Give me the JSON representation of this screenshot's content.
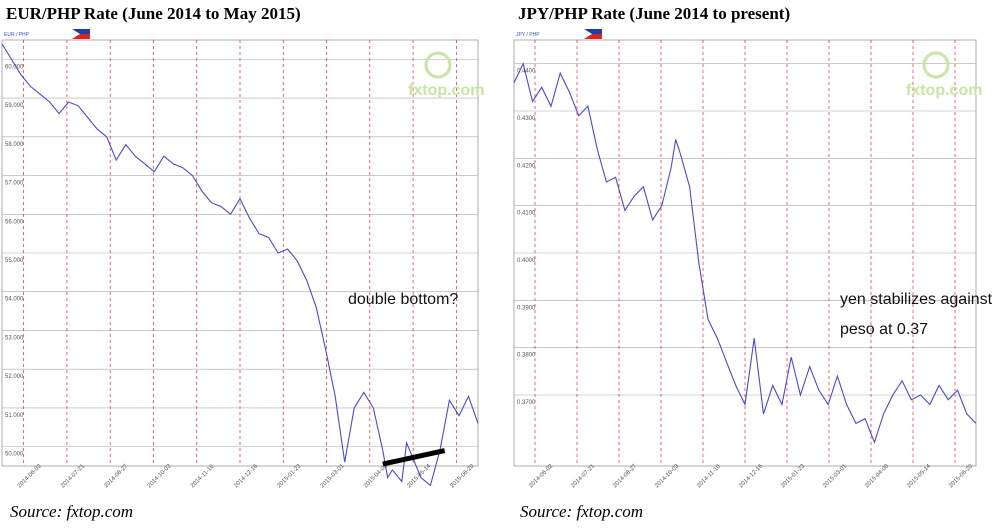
{
  "chart_data": [
    {
      "type": "line",
      "title": "EUR/PHP Rate (June 2014 to May 2015)",
      "source": "Source: fxtop.com",
      "annotation": "double bottom?",
      "header": "EUR / PHP",
      "watermark": "fxtop.com",
      "ylim": [
        49.5,
        60.5
      ],
      "yticks": [
        60,
        59,
        58,
        57,
        56,
        55,
        54,
        53,
        52,
        51,
        50
      ],
      "xticks": [
        "2014-06-02",
        "2014-07-21",
        "2014-08-27",
        "2014-10-03",
        "2014-11-10",
        "2014-12-16",
        "2015-01-23",
        "2015-03-01",
        "2015-04-08",
        "2015-05-14",
        "2015-06-20"
      ],
      "color": "#4a4ad6",
      "trendline": [
        [
          0.8,
          49.55
        ],
        [
          0.93,
          49.9
        ]
      ],
      "points": [
        [
          0,
          60.4
        ],
        [
          0.02,
          60.0
        ],
        [
          0.04,
          59.6
        ],
        [
          0.06,
          59.3
        ],
        [
          0.08,
          59.1
        ],
        [
          0.1,
          58.9
        ],
        [
          0.12,
          58.6
        ],
        [
          0.14,
          58.9
        ],
        [
          0.16,
          58.8
        ],
        [
          0.18,
          58.5
        ],
        [
          0.2,
          58.2
        ],
        [
          0.22,
          58.0
        ],
        [
          0.24,
          57.4
        ],
        [
          0.26,
          57.8
        ],
        [
          0.28,
          57.5
        ],
        [
          0.3,
          57.3
        ],
        [
          0.32,
          57.1
        ],
        [
          0.34,
          57.5
        ],
        [
          0.36,
          57.3
        ],
        [
          0.38,
          57.2
        ],
        [
          0.4,
          57.0
        ],
        [
          0.42,
          56.6
        ],
        [
          0.44,
          56.3
        ],
        [
          0.46,
          56.2
        ],
        [
          0.48,
          56.0
        ],
        [
          0.5,
          56.4
        ],
        [
          0.52,
          55.9
        ],
        [
          0.54,
          55.5
        ],
        [
          0.56,
          55.4
        ],
        [
          0.58,
          55.0
        ],
        [
          0.6,
          55.1
        ],
        [
          0.62,
          54.8
        ],
        [
          0.64,
          54.3
        ],
        [
          0.66,
          53.6
        ],
        [
          0.68,
          52.5
        ],
        [
          0.7,
          51.3
        ],
        [
          0.72,
          49.6
        ],
        [
          0.74,
          51.0
        ],
        [
          0.76,
          51.4
        ],
        [
          0.78,
          51.0
        ],
        [
          0.8,
          49.9
        ],
        [
          0.81,
          49.2
        ],
        [
          0.82,
          49.4
        ],
        [
          0.84,
          49.1
        ],
        [
          0.85,
          50.1
        ],
        [
          0.86,
          49.8
        ],
        [
          0.88,
          49.2
        ],
        [
          0.9,
          49.0
        ],
        [
          0.92,
          49.9
        ],
        [
          0.94,
          51.2
        ],
        [
          0.96,
          50.8
        ],
        [
          0.98,
          51.3
        ],
        [
          1.0,
          50.6
        ]
      ]
    },
    {
      "type": "line",
      "title": "JPY/PHP Rate (June 2014 to present)",
      "source": "Source: fxtop.com",
      "annotation": [
        "yen stabilizes against",
        "peso at 0.37"
      ],
      "header": "JPY / PHP",
      "watermark": "fxtop.com",
      "ylim": [
        0.355,
        0.445
      ],
      "yticks": [
        0.44,
        0.43,
        0.42,
        0.41,
        0.4,
        0.39,
        0.38,
        0.37
      ],
      "xticks": [
        "2014-06-02",
        "2014-07-21",
        "2014-08-27",
        "2014-10-03",
        "2014-11-10",
        "2014-12-16",
        "2015-01-23",
        "2015-03-01",
        "2015-04-08",
        "2015-05-14",
        "2015-06-20"
      ],
      "color": "#4a4ad6",
      "points": [
        [
          0,
          0.436
        ],
        [
          0.02,
          0.44
        ],
        [
          0.04,
          0.432
        ],
        [
          0.06,
          0.435
        ],
        [
          0.08,
          0.431
        ],
        [
          0.1,
          0.438
        ],
        [
          0.12,
          0.434
        ],
        [
          0.14,
          0.429
        ],
        [
          0.16,
          0.431
        ],
        [
          0.18,
          0.422
        ],
        [
          0.2,
          0.415
        ],
        [
          0.22,
          0.416
        ],
        [
          0.24,
          0.409
        ],
        [
          0.26,
          0.412
        ],
        [
          0.28,
          0.414
        ],
        [
          0.3,
          0.407
        ],
        [
          0.32,
          0.41
        ],
        [
          0.34,
          0.418
        ],
        [
          0.35,
          0.424
        ],
        [
          0.36,
          0.421
        ],
        [
          0.38,
          0.414
        ],
        [
          0.4,
          0.398
        ],
        [
          0.42,
          0.386
        ],
        [
          0.44,
          0.382
        ],
        [
          0.46,
          0.377
        ],
        [
          0.48,
          0.372
        ],
        [
          0.5,
          0.368
        ],
        [
          0.52,
          0.382
        ],
        [
          0.54,
          0.366
        ],
        [
          0.56,
          0.372
        ],
        [
          0.58,
          0.368
        ],
        [
          0.6,
          0.378
        ],
        [
          0.62,
          0.37
        ],
        [
          0.64,
          0.376
        ],
        [
          0.66,
          0.371
        ],
        [
          0.68,
          0.368
        ],
        [
          0.7,
          0.374
        ],
        [
          0.72,
          0.368
        ],
        [
          0.74,
          0.364
        ],
        [
          0.76,
          0.365
        ],
        [
          0.78,
          0.36
        ],
        [
          0.8,
          0.366
        ],
        [
          0.82,
          0.37
        ],
        [
          0.84,
          0.373
        ],
        [
          0.86,
          0.369
        ],
        [
          0.88,
          0.37
        ],
        [
          0.9,
          0.368
        ],
        [
          0.92,
          0.372
        ],
        [
          0.94,
          0.369
        ],
        [
          0.96,
          0.371
        ],
        [
          0.98,
          0.366
        ],
        [
          1.0,
          0.364
        ]
      ]
    }
  ]
}
